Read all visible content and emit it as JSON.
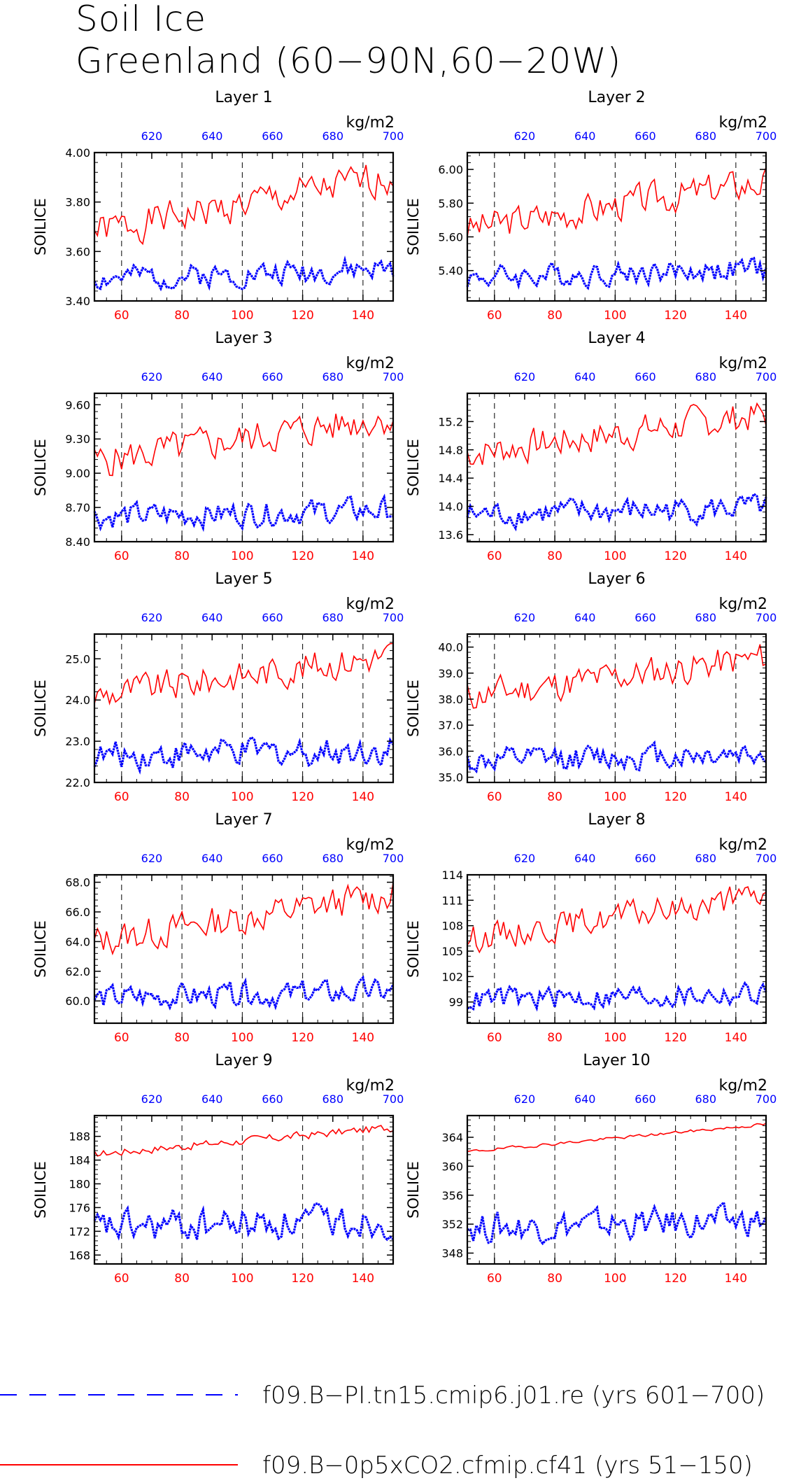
{
  "title": "Soil Ice",
  "subtitle": "Greenland (60−90N,60−20W)",
  "legend": [
    {
      "label": "f09.B−PI.tn15.cmip6.j01.re (yrs 601−700)",
      "color": "#0000ff",
      "dash": "dashed"
    },
    {
      "label": "f09.B−0p5xCO2.cfmip.cf41 (yrs 51−150)",
      "color": "#ff0000",
      "dash": "solid"
    }
  ],
  "chart_data": [
    {
      "type": "line",
      "title": "Layer 1",
      "ylabel": "SOILICE",
      "units": "kg/m2",
      "ylim": [
        3.4,
        4.0
      ],
      "yticks": [
        3.4,
        3.6,
        3.8,
        4.0
      ],
      "ytick_labels": [
        "3.40",
        "3.60",
        "3.80",
        "4.00"
      ],
      "xlim": [
        51,
        150
      ],
      "xticks": [
        60,
        80,
        100,
        120,
        140
      ],
      "top_xlim": [
        601,
        700
      ],
      "top_xticks": [
        620,
        640,
        660,
        680,
        700
      ],
      "grid_x": [
        60,
        80,
        100,
        120,
        140
      ],
      "series": [
        {
          "name": "f09.B−0p5xCO2.cfmip.cf41",
          "color": "#ff0000",
          "x_start": 51,
          "x_end": 150,
          "trend_start": 3.68,
          "trend_end": 3.9,
          "noise": 0.05,
          "seed": 1,
          "pts": 100
        },
        {
          "name": "f09.B−PI.tn15.cmip6.j01.re",
          "color": "#0000ff",
          "x_start": 51,
          "x_end": 150,
          "trend_start": 3.49,
          "trend_end": 3.53,
          "noise": 0.035,
          "seed": 2,
          "pts": 100
        }
      ]
    },
    {
      "type": "line",
      "title": "Layer 2",
      "ylabel": "SOILICE",
      "units": "kg/m2",
      "ylim": [
        5.22,
        6.1
      ],
      "yticks": [
        5.4,
        5.6,
        5.8,
        6.0
      ],
      "ytick_labels": [
        "5.40",
        "5.60",
        "5.80",
        "6.00"
      ],
      "xlim": [
        51,
        150
      ],
      "xticks": [
        60,
        80,
        100,
        120,
        140
      ],
      "top_xlim": [
        601,
        700
      ],
      "top_xticks": [
        620,
        640,
        660,
        680,
        700
      ],
      "grid_x": [
        60,
        80,
        100,
        120,
        140
      ],
      "series": [
        {
          "name": "f09.B−0p5xCO2.cfmip.cf41",
          "color": "#ff0000",
          "x_start": 51,
          "x_end": 150,
          "trend_start": 5.65,
          "trend_end": 5.93,
          "noise": 0.07,
          "seed": 3,
          "pts": 100
        },
        {
          "name": "f09.B−PI.tn15.cmip6.j01.re",
          "color": "#0000ff",
          "x_start": 51,
          "x_end": 150,
          "trend_start": 5.36,
          "trend_end": 5.41,
          "noise": 0.05,
          "seed": 4,
          "pts": 100
        }
      ]
    },
    {
      "type": "line",
      "title": "Layer 3",
      "ylabel": "SOILICE",
      "units": "kg/m2",
      "ylim": [
        8.4,
        9.7
      ],
      "yticks": [
        8.4,
        8.7,
        9.0,
        9.3,
        9.6
      ],
      "ytick_labels": [
        "8.40",
        "8.70",
        "9.00",
        "9.30",
        "9.60"
      ],
      "xlim": [
        51,
        150
      ],
      "xticks": [
        60,
        80,
        100,
        120,
        140
      ],
      "top_xlim": [
        601,
        700
      ],
      "top_xticks": [
        620,
        640,
        660,
        680,
        700
      ],
      "grid_x": [
        60,
        80,
        100,
        120,
        140
      ],
      "series": [
        {
          "name": "f09.B−0p5xCO2.cfmip.cf41",
          "color": "#ff0000",
          "x_start": 51,
          "x_end": 150,
          "trend_start": 9.1,
          "trend_end": 9.5,
          "noise": 0.11,
          "seed": 5,
          "pts": 100
        },
        {
          "name": "f09.B−PI.tn15.cmip6.j01.re",
          "color": "#0000ff",
          "x_start": 51,
          "x_end": 150,
          "trend_start": 8.62,
          "trend_end": 8.68,
          "noise": 0.08,
          "seed": 6,
          "pts": 100
        }
      ]
    },
    {
      "type": "line",
      "title": "Layer 4",
      "ylabel": "SOILICE",
      "units": "kg/m2",
      "ylim": [
        13.5,
        15.6
      ],
      "yticks": [
        13.6,
        14.0,
        14.4,
        14.8,
        15.2
      ],
      "ytick_labels": [
        "13.6",
        "14.0",
        "14.4",
        "14.8",
        "15.2"
      ],
      "xlim": [
        51,
        150
      ],
      "xticks": [
        60,
        80,
        100,
        120,
        140
      ],
      "top_xlim": [
        601,
        700
      ],
      "top_xticks": [
        620,
        640,
        660,
        680,
        700
      ],
      "grid_x": [
        60,
        80,
        100,
        120,
        140
      ],
      "series": [
        {
          "name": "f09.B−0p5xCO2.cfmip.cf41",
          "color": "#ff0000",
          "x_start": 51,
          "x_end": 150,
          "trend_start": 14.75,
          "trend_end": 15.3,
          "noise": 0.17,
          "seed": 7,
          "pts": 100
        },
        {
          "name": "f09.B−PI.tn15.cmip6.j01.re",
          "color": "#0000ff",
          "x_start": 51,
          "x_end": 150,
          "trend_start": 13.88,
          "trend_end": 13.98,
          "noise": 0.13,
          "seed": 8,
          "pts": 100
        }
      ]
    },
    {
      "type": "line",
      "title": "Layer 5",
      "ylabel": "SOILICE",
      "units": "kg/m2",
      "ylim": [
        22.0,
        25.6
      ],
      "yticks": [
        22.0,
        23.0,
        24.0,
        25.0
      ],
      "ytick_labels": [
        "22.0",
        "23.0",
        "24.0",
        "25.0"
      ],
      "xlim": [
        51,
        150
      ],
      "xticks": [
        60,
        80,
        100,
        120,
        140
      ],
      "top_xlim": [
        601,
        700
      ],
      "top_xticks": [
        620,
        640,
        660,
        680,
        700
      ],
      "grid_x": [
        60,
        80,
        100,
        120,
        140
      ],
      "series": [
        {
          "name": "f09.B−0p5xCO2.cfmip.cf41",
          "color": "#ff0000",
          "x_start": 51,
          "x_end": 150,
          "trend_start": 24.1,
          "trend_end": 25.1,
          "noise": 0.28,
          "seed": 9,
          "pts": 100
        },
        {
          "name": "f09.B−PI.tn15.cmip6.j01.re",
          "color": "#0000ff",
          "x_start": 51,
          "x_end": 150,
          "trend_start": 22.65,
          "trend_end": 22.8,
          "noise": 0.25,
          "seed": 10,
          "pts": 100
        }
      ]
    },
    {
      "type": "line",
      "title": "Layer 6",
      "ylabel": "SOILICE",
      "units": "kg/m2",
      "ylim": [
        34.8,
        40.5
      ],
      "yticks": [
        35.0,
        36.0,
        37.0,
        38.0,
        39.0,
        40.0
      ],
      "ytick_labels": [
        "35.0",
        "36.0",
        "37.0",
        "38.0",
        "39.0",
        "40.0"
      ],
      "xlim": [
        51,
        150
      ],
      "xticks": [
        60,
        80,
        100,
        120,
        140
      ],
      "top_xlim": [
        601,
        700
      ],
      "top_xticks": [
        620,
        640,
        660,
        680,
        700
      ],
      "grid_x": [
        60,
        80,
        100,
        120,
        140
      ],
      "series": [
        {
          "name": "f09.B−0p5xCO2.cfmip.cf41",
          "color": "#ff0000",
          "x_start": 51,
          "x_end": 150,
          "trend_start": 38.1,
          "trend_end": 39.6,
          "noise": 0.45,
          "seed": 11,
          "pts": 100
        },
        {
          "name": "f09.B−PI.tn15.cmip6.j01.re",
          "color": "#0000ff",
          "x_start": 51,
          "x_end": 150,
          "trend_start": 35.6,
          "trend_end": 35.95,
          "noise": 0.35,
          "seed": 12,
          "pts": 100
        }
      ]
    },
    {
      "type": "line",
      "title": "Layer 7",
      "ylabel": "SOILICE",
      "units": "kg/m2",
      "ylim": [
        58.5,
        68.5
      ],
      "yticks": [
        60.0,
        62.0,
        64.0,
        66.0,
        68.0
      ],
      "ytick_labels": [
        "60.0",
        "62.0",
        "64.0",
        "66.0",
        "68.0"
      ],
      "xlim": [
        51,
        150
      ],
      "xticks": [
        60,
        80,
        100,
        120,
        140
      ],
      "top_xlim": [
        601,
        700
      ],
      "top_xticks": [
        620,
        640,
        660,
        680,
        700
      ],
      "grid_x": [
        60,
        80,
        100,
        120,
        140
      ],
      "series": [
        {
          "name": "f09.B−0p5xCO2.cfmip.cf41",
          "color": "#ff0000",
          "x_start": 51,
          "x_end": 150,
          "trend_start": 64.0,
          "trend_end": 67.2,
          "noise": 0.8,
          "seed": 13,
          "pts": 100
        },
        {
          "name": "f09.B−PI.tn15.cmip6.j01.re",
          "color": "#0000ff",
          "x_start": 51,
          "x_end": 150,
          "trend_start": 60.2,
          "trend_end": 60.6,
          "noise": 0.6,
          "seed": 14,
          "pts": 100
        }
      ]
    },
    {
      "type": "line",
      "title": "Layer 8",
      "ylabel": "SOILICE",
      "units": "kg/m2",
      "ylim": [
        96.5,
        114.0
      ],
      "yticks": [
        99,
        102,
        105,
        108,
        111,
        114
      ],
      "ytick_labels": [
        "99",
        "102",
        "105",
        "108",
        "111",
        "114"
      ],
      "xlim": [
        51,
        150
      ],
      "xticks": [
        60,
        80,
        100,
        120,
        140
      ],
      "top_xlim": [
        601,
        700
      ],
      "top_xticks": [
        620,
        640,
        660,
        680,
        700
      ],
      "grid_x": [
        60,
        80,
        100,
        120,
        140
      ],
      "series": [
        {
          "name": "f09.B−0p5xCO2.cfmip.cf41",
          "color": "#ff0000",
          "x_start": 51,
          "x_end": 150,
          "trend_start": 106.5,
          "trend_end": 111.5,
          "noise": 1.2,
          "seed": 15,
          "pts": 100
        },
        {
          "name": "f09.B−PI.tn15.cmip6.j01.re",
          "color": "#0000ff",
          "x_start": 51,
          "x_end": 150,
          "trend_start": 99.3,
          "trend_end": 100.0,
          "noise": 1.0,
          "seed": 16,
          "pts": 100
        }
      ]
    },
    {
      "type": "line",
      "title": "Layer 9",
      "ylabel": "SOILICE",
      "units": "kg/m2",
      "ylim": [
        166.5,
        191.5
      ],
      "yticks": [
        168,
        172,
        176,
        180,
        184,
        188
      ],
      "ytick_labels": [
        "168",
        "172",
        "176",
        "180",
        "184",
        "188"
      ],
      "xlim": [
        51,
        150
      ],
      "xticks": [
        60,
        80,
        100,
        120,
        140
      ],
      "top_xlim": [
        601,
        700
      ],
      "top_xticks": [
        620,
        640,
        660,
        680,
        700
      ],
      "grid_x": [
        60,
        80,
        100,
        120,
        140
      ],
      "series": [
        {
          "name": "f09.B−0p5xCO2.cfmip.cf41",
          "color": "#ff0000",
          "x_start": 51,
          "x_end": 150,
          "trend_start": 185.0,
          "trend_end": 189.5,
          "noise": 0.5,
          "seed": 17,
          "pts": 100
        },
        {
          "name": "f09.B−PI.tn15.cmip6.j01.re",
          "color": "#0000ff",
          "x_start": 51,
          "x_end": 150,
          "trend_start": 172.5,
          "trend_end": 174.0,
          "noise": 2.0,
          "seed": 18,
          "pts": 100
        }
      ]
    },
    {
      "type": "line",
      "title": "Layer 10",
      "ylabel": "SOILICE",
      "units": "kg/m2",
      "ylim": [
        346.5,
        367.0
      ],
      "yticks": [
        348,
        352,
        356,
        360,
        364
      ],
      "ytick_labels": [
        "348",
        "352",
        "356",
        "360",
        "364"
      ],
      "xlim": [
        51,
        150
      ],
      "xticks": [
        60,
        80,
        100,
        120,
        140
      ],
      "top_xlim": [
        601,
        700
      ],
      "top_xticks": [
        620,
        640,
        660,
        680,
        700
      ],
      "grid_x": [
        60,
        80,
        100,
        120,
        140
      ],
      "series": [
        {
          "name": "f09.B−0p5xCO2.cfmip.cf41",
          "color": "#ff0000",
          "x_start": 51,
          "x_end": 150,
          "trend_start": 362.0,
          "trend_end": 365.8,
          "noise": 0.15,
          "seed": 19,
          "pts": 100
        },
        {
          "name": "f09.B−PI.tn15.cmip6.j01.re",
          "color": "#0000ff",
          "x_start": 51,
          "x_end": 150,
          "trend_start": 351.5,
          "trend_end": 352.5,
          "noise": 1.5,
          "seed": 20,
          "pts": 100
        }
      ]
    }
  ]
}
